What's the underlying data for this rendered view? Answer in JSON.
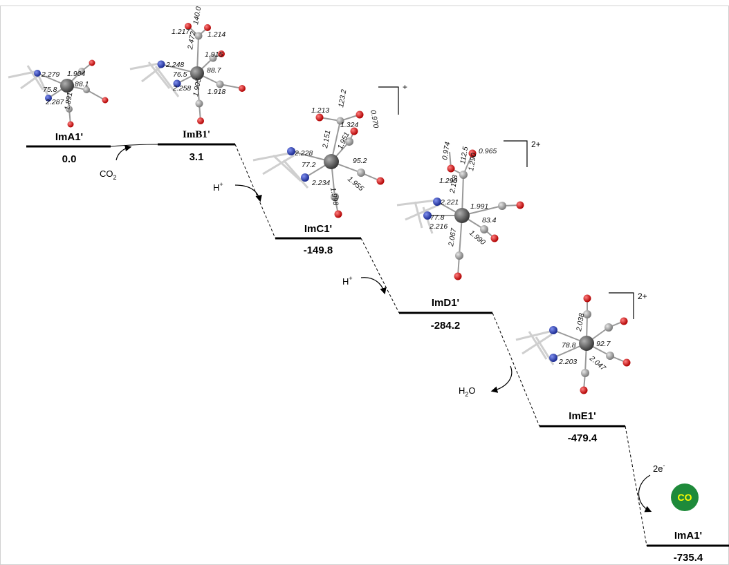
{
  "states": [
    {
      "name": "ImA1'",
      "energy": "0.0"
    },
    {
      "name": "ImB1'",
      "energy": "3.1"
    },
    {
      "name": "ImC1'",
      "energy": "-149.8"
    },
    {
      "name": "ImD1'",
      "energy": "-284.2"
    },
    {
      "name": "ImE1'",
      "energy": "-479.4"
    },
    {
      "name": "ImA1'",
      "energy": "-735.4"
    }
  ],
  "steps": {
    "co2": "CO",
    "co2_sub": "2",
    "proton1": "H",
    "proton1_sup": "+",
    "proton2": "H",
    "proton2_sup": "+",
    "water": "H",
    "water_sub": "2",
    "water_tail": "O",
    "electrons": "2e",
    "electrons_sup": "-",
    "co_product": "CO"
  },
  "charges": {
    "imc1": "+",
    "imd1": "2+",
    "ime1": "2+"
  },
  "geometry_labels": {
    "ima1": [
      "2.279",
      "1.904",
      "75.8",
      "88.1",
      "2.287",
      "1.891"
    ],
    "imb1": [
      "1.217",
      "140.0",
      "1.214",
      "2.472",
      "1.915",
      "2.248",
      "88.7",
      "76.5",
      "2.258",
      "1.905",
      "1.918"
    ],
    "imc1": [
      "1.213",
      "123.2",
      "0.970",
      "1.324",
      "2.151",
      "2.228",
      "1.951",
      "95.2",
      "77.2",
      "2.234",
      "1.998",
      "1.955"
    ],
    "imd1": [
      "0.974",
      "112.5",
      "0.965",
      "1.290",
      "1.290",
      "2.158",
      "2.221",
      "1.991",
      "77.8",
      "2.216",
      "83.4",
      "2.067",
      "1.990"
    ],
    "ime1": [
      "2.038",
      "78.8",
      "92.7",
      "2.203",
      "2.047"
    ]
  },
  "colors": {
    "carbon": "#8c8c8c",
    "metal": "#5a5a5a",
    "nitrogen": "#2b3fa6",
    "oxygen": "#d01818",
    "hydrogen": "#d8d8d8",
    "co_badge": "#1e8a3a",
    "co_text": "#ffff00"
  }
}
